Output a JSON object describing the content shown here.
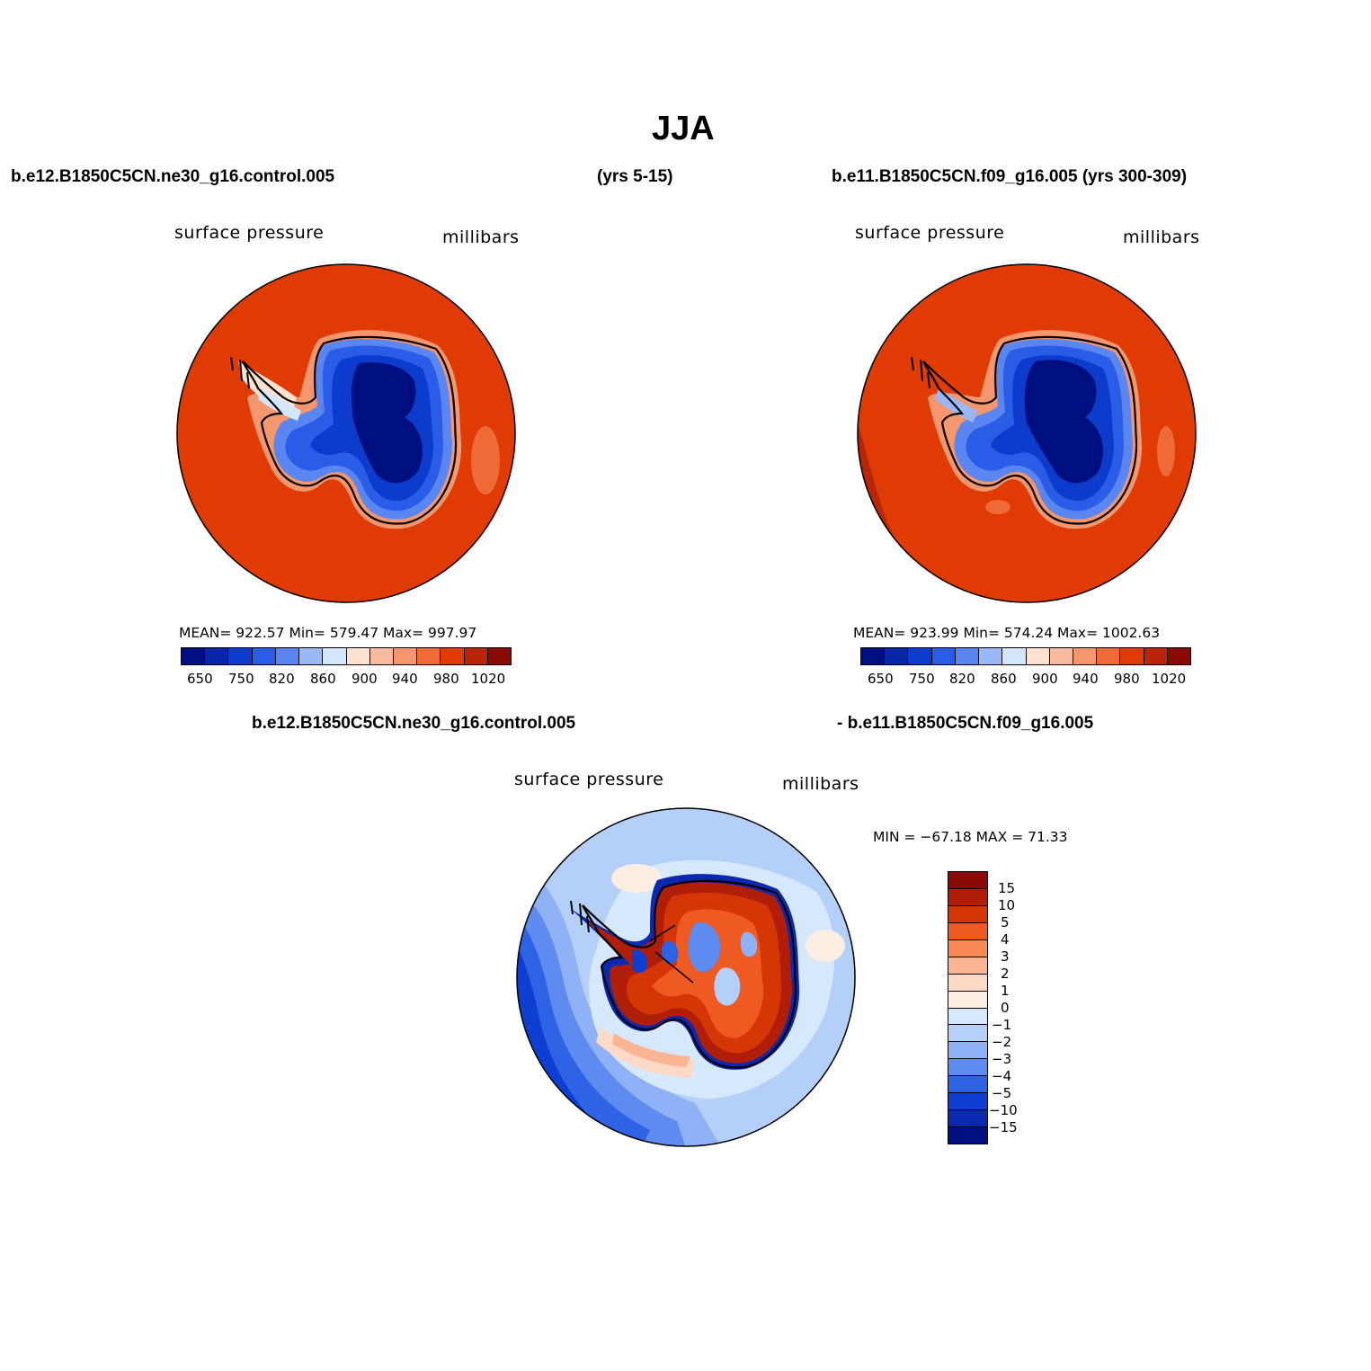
{
  "page": {
    "title": "JJA"
  },
  "colors": {
    "ocean_fill": "#e03a05",
    "coast": "#000000"
  },
  "top_left": {
    "case": "b.e12.B1850C5CN.ne30_g16.control.005",
    "years": "(yrs 5-15)",
    "variable": "surface pressure",
    "units": "millibars",
    "stats": "MEAN= 922.57   Min= 579.47   Max= 997.97",
    "ticks": [
      "650",
      "750",
      "820",
      "860",
      "900",
      "940",
      "980",
      "1020"
    ]
  },
  "top_right": {
    "case": "b.e11.B1850C5CN.f09_g16.005 (yrs 300-309)",
    "variable": "surface pressure",
    "units": "millibars",
    "stats": "MEAN= 923.99   Min= 574.24   Max= 1002.63",
    "ticks": [
      "650",
      "750",
      "820",
      "860",
      "900",
      "940",
      "980",
      "1020"
    ]
  },
  "bottom": {
    "case_left": "b.e12.B1850C5CN.ne30_g16.control.005",
    "case_right": "- b.e11.B1850C5CN.f09_g16.005",
    "variable": "surface pressure",
    "units": "millibars",
    "stats": "MIN = −67.18 MAX =   71.33",
    "ticks": [
      "15",
      "10",
      "5",
      "4",
      "3",
      "2",
      "1",
      "0",
      "−1",
      "−2",
      "−3",
      "−4",
      "−5",
      "−10",
      "−15"
    ]
  },
  "palette_abs": [
    "#000f80",
    "#0a26a8",
    "#0d3ccc",
    "#2a5ce8",
    "#5a86f2",
    "#9ab8f6",
    "#d4e6fb",
    "#fde2cf",
    "#f8bba0",
    "#f4966e",
    "#ee6a36",
    "#e03a05",
    "#b82508",
    "#8a0a05"
  ],
  "palette_diff": [
    "#8a0a05",
    "#b01e08",
    "#d63506",
    "#ee5a22",
    "#f98a56",
    "#fcb592",
    "#fddac8",
    "#fdeee3",
    "#d6e8fb",
    "#b4d0f9",
    "#8fb2f6",
    "#5d8bef",
    "#2f63e5",
    "#0f3fd2",
    "#0a28b0",
    "#000f80"
  ]
}
